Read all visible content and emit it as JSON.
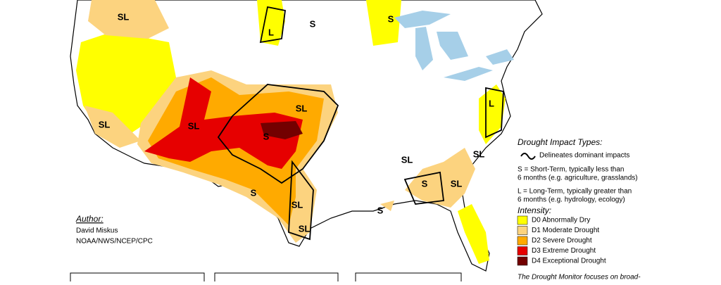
{
  "map_labels": [
    "SL",
    "L",
    "S",
    "S",
    "SL",
    "SL",
    "SL",
    "S",
    "L",
    "SL",
    "SL",
    "S",
    "SL",
    "S",
    "SL",
    "SL",
    "S"
  ],
  "legend": {
    "impact_title": "Drought Impact Types:",
    "delineates": "Delineates dominant impacts",
    "short_1": "S = Short-Term, typically less than",
    "short_2": "6 months (e.g. agriculture, grasslands)",
    "long_1": "L = Long-Term, typically greater than",
    "long_2": "6 months (e.g. hydrology, ecology)",
    "intensity_title": "Intensity:",
    "intensity": [
      {
        "label": "D0 Abnormally Dry",
        "color": "#ffff00"
      },
      {
        "label": "D1 Moderate Drought",
        "color": "#fcd37f"
      },
      {
        "label": "D2 Severe Drought",
        "color": "#ffaa00"
      },
      {
        "label": "D3 Extreme Drought",
        "color": "#e60000"
      },
      {
        "label": "D4 Exceptional Drought",
        "color": "#730000"
      }
    ]
  },
  "author": {
    "heading": "Author:",
    "name": "David Miskus",
    "org": "NOAA/NWS/NCEP/CPC"
  },
  "footer_note": "The Drought Monitor focuses on broad-"
}
